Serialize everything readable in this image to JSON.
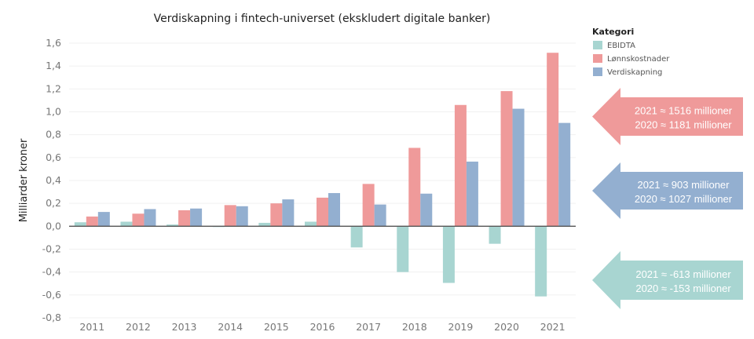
{
  "chart_data": {
    "type": "bar",
    "title": "Verdiskapning i fintech-universet (ekskludert digitale banker)",
    "ylabel": "Milliarder kroner",
    "xlabel": "",
    "ylim": [
      -0.8,
      1.6
    ],
    "yticks": [
      "-0,8",
      "-0,6",
      "-0,4",
      "-0,2",
      "0,0",
      "0,2",
      "0,4",
      "0,6",
      "0,8",
      "1,0",
      "1,2",
      "1,4",
      "1,6"
    ],
    "grid": true,
    "categories": [
      "2011",
      "2012",
      "2013",
      "2014",
      "2015",
      "2016",
      "2017",
      "2018",
      "2019",
      "2020",
      "2021"
    ],
    "legend": {
      "title": "Kategori",
      "placement": "top-right"
    },
    "series": [
      {
        "name": "EBIDTA",
        "color": "#a8d5d1",
        "values": [
          0.035,
          0.04,
          0.015,
          -0.005,
          0.03,
          0.04,
          -0.185,
          -0.4,
          -0.495,
          -0.153,
          -0.613
        ]
      },
      {
        "name": "Lønnskostnader",
        "color": "#ef9a9a",
        "values": [
          0.085,
          0.11,
          0.14,
          0.185,
          0.2,
          0.25,
          0.37,
          0.685,
          1.06,
          1.181,
          1.516
        ]
      },
      {
        "name": "Verdiskapning",
        "color": "#93afd0",
        "values": [
          0.125,
          0.15,
          0.155,
          0.175,
          0.235,
          0.29,
          0.19,
          0.285,
          0.565,
          1.027,
          0.903
        ]
      }
    ],
    "annotations": [
      {
        "color": "#ef9a9a",
        "lines": [
          "2021 ≈ 1516 millioner",
          "2020 ≈ 1181 millioner"
        ]
      },
      {
        "color": "#93afd0",
        "lines": [
          "2021 ≈ 903 millioner",
          "2020 ≈ 1027 millioner"
        ]
      },
      {
        "color": "#a8d5d1",
        "lines": [
          "2021 ≈ -613 millioner",
          "2020 ≈ -153 millioner"
        ]
      }
    ]
  }
}
